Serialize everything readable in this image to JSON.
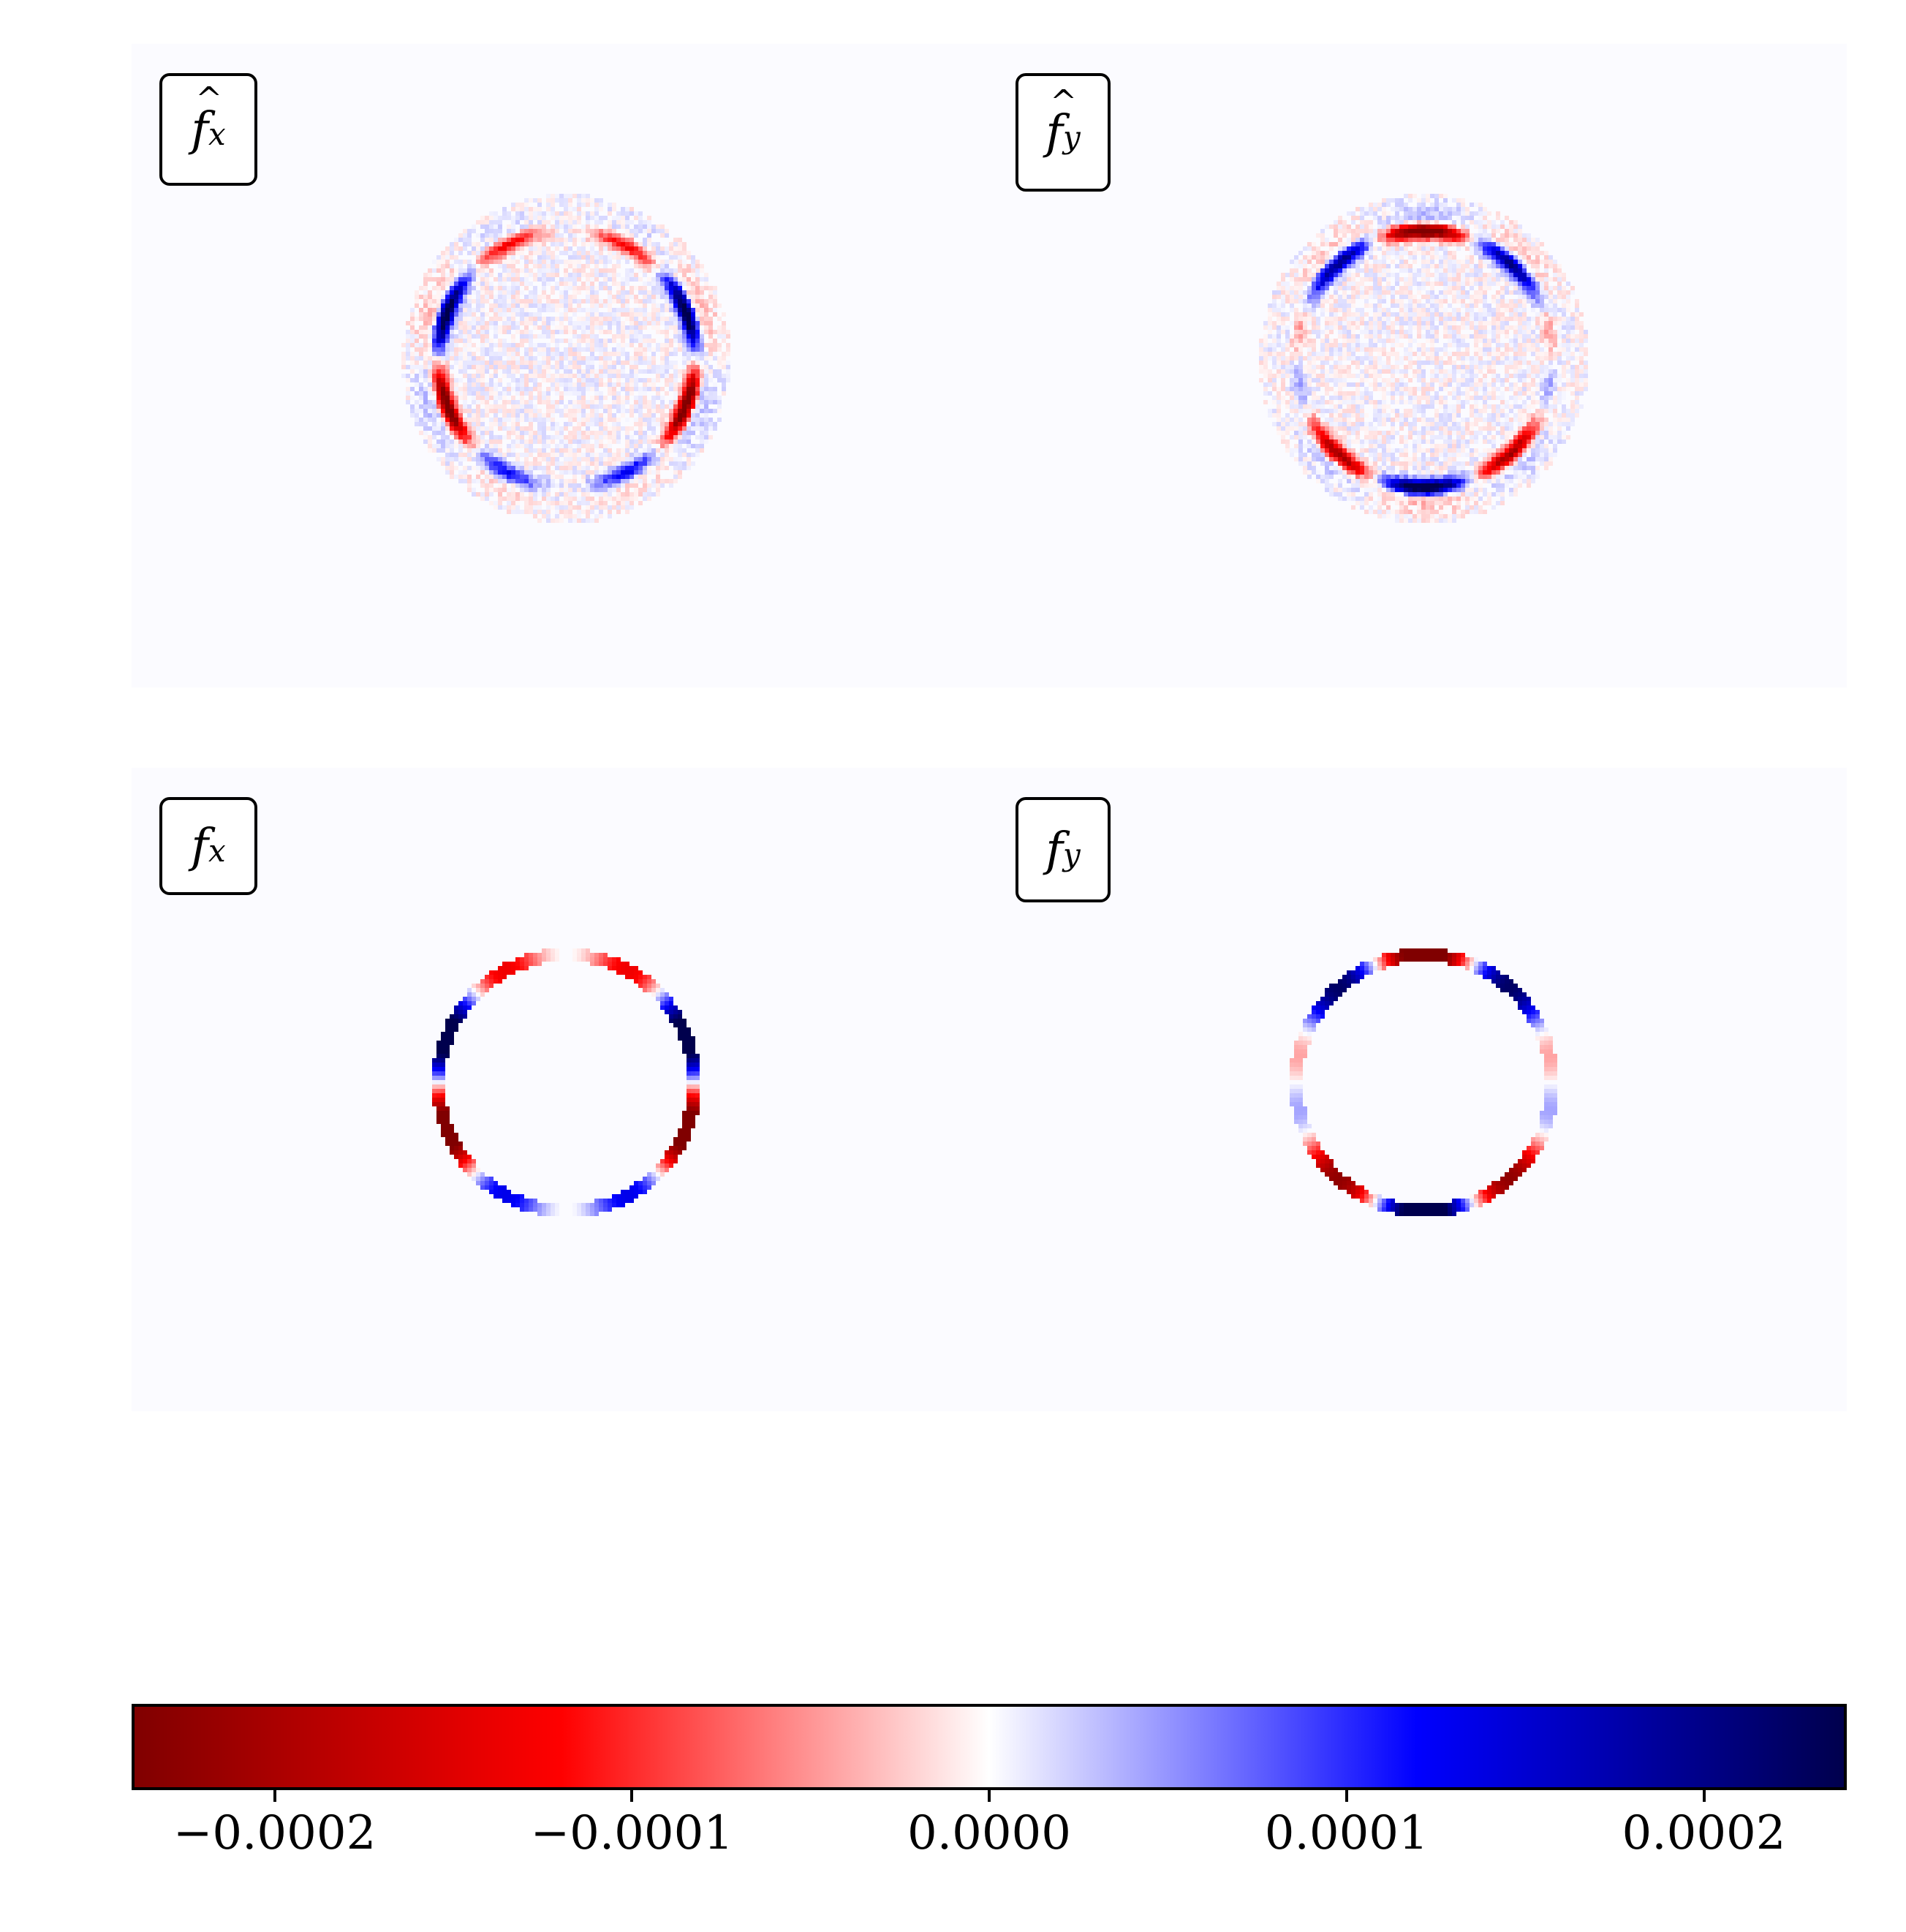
{
  "panels": [
    {
      "id": "fhat_x",
      "label_base": "f",
      "label_sub": "x",
      "hat": true,
      "type": "noisy",
      "mult": 1
    },
    {
      "id": "fhat_y",
      "label_base": "f",
      "label_sub": "y",
      "hat": true,
      "type": "noisy",
      "mult": -1
    },
    {
      "id": "f_x",
      "label_base": "f",
      "label_sub": "x",
      "hat": false,
      "type": "clean",
      "mult": 1
    },
    {
      "id": "f_y",
      "label_base": "f",
      "label_sub": "y",
      "hat": false,
      "type": "clean",
      "mult": -1
    }
  ],
  "chart_data": {
    "type": "heatmap",
    "colormap": "seismic",
    "vmin": -0.00024,
    "vmax": 0.00024,
    "colorbar": {
      "ticks": [
        -0.0002,
        -0.0001,
        0.0,
        0.0001,
        0.0002
      ],
      "tick_labels": [
        "−0.0002",
        "−0.0001",
        "0.0000",
        "0.0001",
        "0.0002"
      ],
      "orientation": "horizontal"
    },
    "grid": false
  }
}
